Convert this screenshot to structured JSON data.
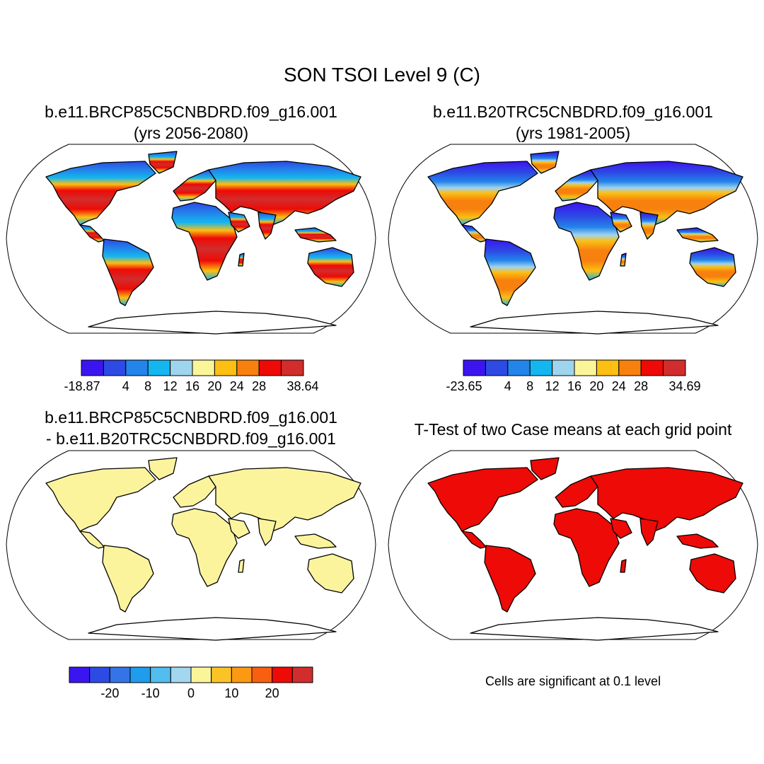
{
  "main_title": "SON TSOI Level 9 (C)",
  "panels": [
    {
      "id": "rcp85",
      "title_line1": "b.e11.BRCP85C5CNBDRD.f09_g16.001",
      "title_line2": "(yrs 2056-2080)",
      "fill": "warm-gradient",
      "colorbar": {
        "colors": [
          "#3b15f0",
          "#2d4ae4",
          "#2384ea",
          "#14b6f0",
          "#9fd4ee",
          "#fbf599",
          "#fcbf12",
          "#f7800e",
          "#ee0a06",
          "#d12d2c"
        ],
        "labels": [
          "-18.87",
          "4",
          "8",
          "12",
          "16",
          "20",
          "24",
          "28",
          "38.64"
        ]
      }
    },
    {
      "id": "b20tr",
      "title_line1": "b.e11.B20TRC5CNBDRD.f09_g16.001",
      "title_line2": "(yrs 1981-2005)",
      "fill": "warm-gradient-cool",
      "colorbar": {
        "colors": [
          "#3b15f0",
          "#2d4ae4",
          "#2384ea",
          "#14b6f0",
          "#9fd4ee",
          "#fbf599",
          "#fcbf12",
          "#f7800e",
          "#ee0a06",
          "#d12d2c"
        ],
        "labels": [
          "-23.65",
          "4",
          "8",
          "12",
          "16",
          "20",
          "24",
          "28",
          "34.69"
        ]
      }
    },
    {
      "id": "diff",
      "title_line1": "b.e11.BRCP85C5CNBDRD.f09_g16.001",
      "title_line2": "- b.e11.B20TRC5CNBDRD.f09_g16.001",
      "fill": "#fbf49d",
      "colorbar": {
        "colors": [
          "#3b15f0",
          "#2d4ae4",
          "#3474e6",
          "#1f9cec",
          "#52bdee",
          "#a3d6ef",
          "#fbf599",
          "#fcc326",
          "#fb9a12",
          "#f86010",
          "#ee0a06",
          "#d12d2c"
        ],
        "labels": [
          "-20",
          "-10",
          "0",
          "10",
          "20"
        ]
      }
    },
    {
      "id": "ttest",
      "title_line1": "T-Test of two Case means at each grid point",
      "title_line2": "",
      "fill": "#ee0a06",
      "note": "Cells are significant at 0.1 level"
    }
  ]
}
